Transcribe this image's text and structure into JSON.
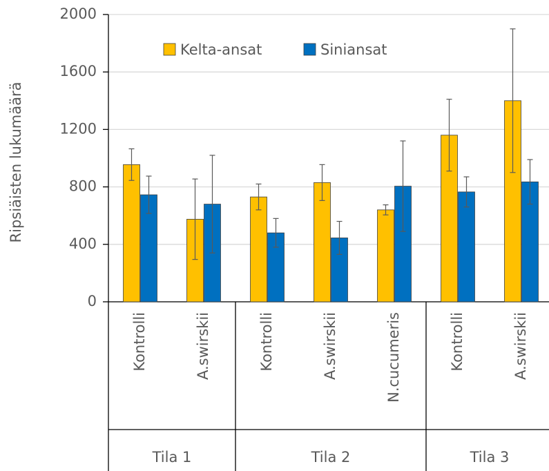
{
  "chart_data": {
    "type": "bar",
    "y_label": "Ripsiäisten lukumäärä",
    "categories": [
      "Kontrolli",
      "A.swirskii",
      "Kontrolli",
      "A.swirskii",
      "N.cucumeris",
      "Kontrolli",
      "A.swirskii"
    ],
    "groups": [
      {
        "name": "Tila 1",
        "count": 2
      },
      {
        "name": "Tila 2",
        "count": 3
      },
      {
        "name": "Tila 3",
        "count": 2
      }
    ],
    "series": [
      {
        "name": "Kelta-ansat",
        "color": "#ffc000",
        "values": [
          955,
          575,
          730,
          830,
          640,
          1160,
          1400
        ],
        "errors": [
          110,
          280,
          90,
          125,
          35,
          250,
          500
        ]
      },
      {
        "name": "Siniansat",
        "color": "#0070c0",
        "values": [
          745,
          680,
          480,
          445,
          805,
          765,
          835
        ],
        "errors": [
          130,
          340,
          100,
          115,
          315,
          105,
          155
        ]
      }
    ],
    "ylim": [
      0,
      2000
    ],
    "yticks": [
      0,
      400,
      800,
      1200,
      1600,
      2000
    ],
    "grid": true
  }
}
